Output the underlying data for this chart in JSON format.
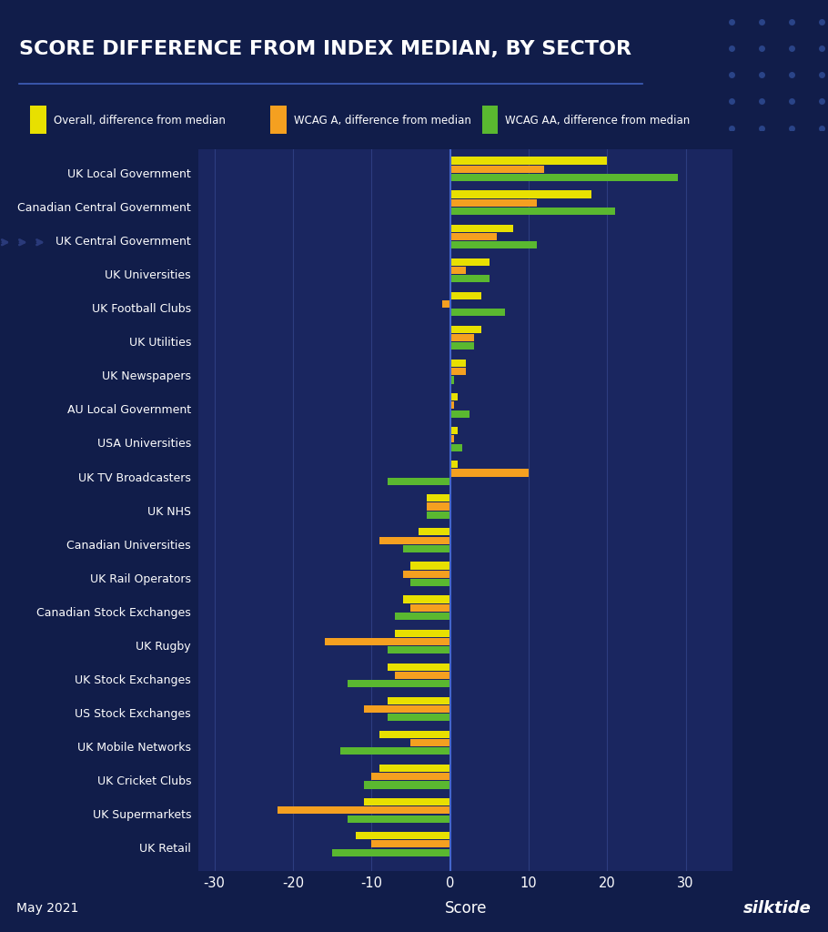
{
  "title": "SCORE DIFFERENCE FROM INDEX MEDIAN, BY SECTOR",
  "xlabel": "Score",
  "footer_left": "May 2021",
  "footer_right": "silktide",
  "legend": [
    {
      "label": "Overall, difference from median",
      "color": "#e8e000"
    },
    {
      "label": "WCAG A, difference from median",
      "color": "#f5a020"
    },
    {
      "label": "WCAG AA, difference from median",
      "color": "#5ab830"
    }
  ],
  "categories": [
    "UK Local Government",
    "Canadian Central Government",
    "UK Central Government",
    "UK Universities",
    "UK Football Clubs",
    "UK Utilities",
    "UK Newspapers",
    "AU Local Government",
    "USA Universities",
    "UK TV Broadcasters",
    "UK NHS",
    "Canadian Universities",
    "UK Rail Operators",
    "Canadian Stock Exchanges",
    "UK Rugby",
    "UK Stock Exchanges",
    "US Stock Exchanges",
    "UK Mobile Networks",
    "UK Cricket Clubs",
    "UK Supermarkets",
    "UK Retail"
  ],
  "overall": [
    20,
    18,
    8,
    5,
    4,
    4,
    2,
    1,
    1,
    1,
    -3,
    -4,
    -5,
    -6,
    -7,
    -8,
    -8,
    -9,
    -9,
    -11,
    -12
  ],
  "wcag_a": [
    12,
    11,
    6,
    2,
    -1,
    3,
    2,
    0.5,
    0.5,
    10,
    -3,
    -9,
    -6,
    -5,
    -16,
    -7,
    -11,
    -5,
    -10,
    -22,
    -10
  ],
  "wcag_aa": [
    29,
    21,
    11,
    5,
    7,
    3,
    0.5,
    2.5,
    1.5,
    -8,
    -3,
    -6,
    -5,
    -7,
    -8,
    -13,
    -8,
    -14,
    -11,
    -13,
    -15
  ],
  "xlim": [
    -32,
    36
  ],
  "xticks": [
    -30,
    -20,
    -10,
    0,
    10,
    20,
    30
  ],
  "background_color": "#111d4a",
  "plot_bg_color": "#1a2660",
  "sidebar_color": "#0d1535",
  "bar_height": 0.22,
  "grid_color": "#2d3d80",
  "text_color": "#ffffff",
  "title_color": "#ffffff"
}
